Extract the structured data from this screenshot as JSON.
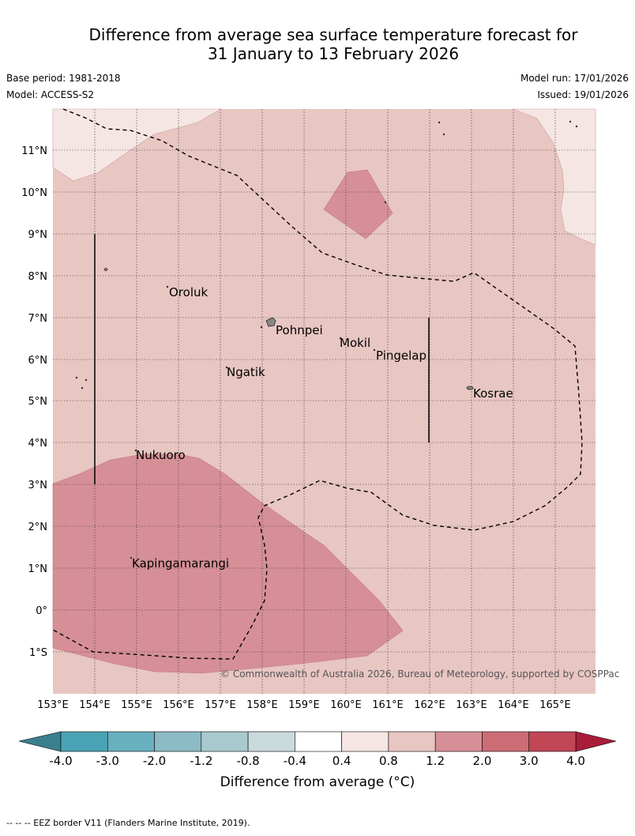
{
  "title_line1": "Difference from average sea surface temperature forecast for",
  "title_line2": "31 January to 13 February 2026",
  "base_period": "Base period: 1981-2018",
  "model": "Model: ACCESS-S2",
  "model_run": "Model run: 17/01/2026",
  "issued": "Issued: 19/01/2026",
  "longitudes": [
    "153°E",
    "154°E",
    "155°E",
    "156°E",
    "157°E",
    "158°E",
    "159°E",
    "160°E",
    "161°E",
    "162°E",
    "163°E",
    "164°E",
    "165°E"
  ],
  "latitudes": [
    "11°N",
    "10°N",
    "9°N",
    "8°N",
    "7°N",
    "6°N",
    "5°N",
    "4°N",
    "3°N",
    "2°N",
    "1°N",
    "0°",
    "1°S"
  ],
  "places": {
    "oroluk": "Oroluk",
    "pohnpei": "Pohnpei",
    "mokil": "Mokil",
    "pingelap": "Pingelap",
    "ngatik": "Ngatik",
    "kosrae": "Kosrae",
    "nukuoro": "Nukuoro",
    "kapingamarangi": "Kapingamarangi"
  },
  "copyright": "© Commonwealth of Australia 2026, Bureau of Meteorology, supported by COSPPac",
  "colorbar": {
    "ticks": [
      "-4.0",
      "-3.0",
      "-2.0",
      "-1.2",
      "-0.8",
      "-0.4",
      "0.4",
      "0.8",
      "1.2",
      "2.0",
      "3.0",
      "4.0"
    ],
    "colors": [
      "#4aa3b4",
      "#69b0bf",
      "#8cbac5",
      "#a8c9cd",
      "#c9dadd",
      "#ffffff",
      "#f5e6e4",
      "#e8c6c2",
      "#d68f96",
      "#cc6d76",
      "#c04656"
    ],
    "under_color": "#3b7f8e",
    "over_color": "#a81d3a",
    "label": "Difference from average (°C)"
  },
  "footer": "-- -- -- EEZ border V11 (Flanders Marine Institute, 2019)."
}
